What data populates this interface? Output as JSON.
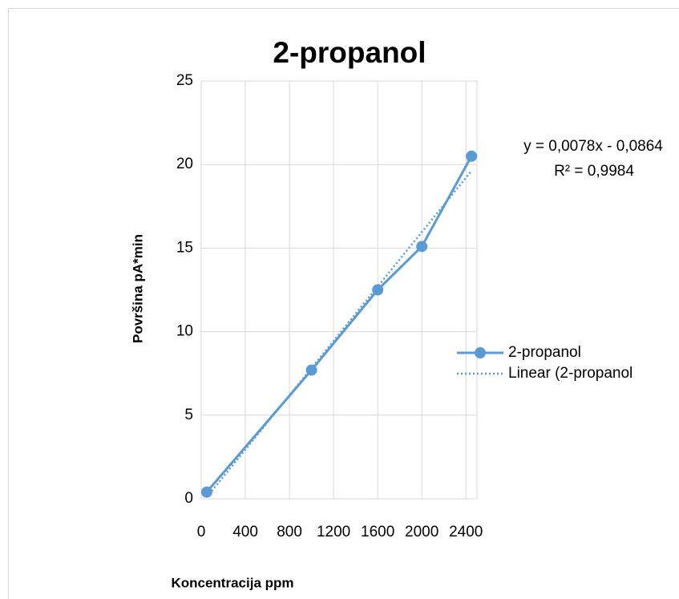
{
  "chart_data": {
    "type": "line",
    "title": "2-propanol",
    "x_label": "Koncentracija ppm",
    "y_label": "Površina pA*min",
    "x": [
      50,
      1000,
      1600,
      2000,
      2450
    ],
    "series": [
      {
        "name": "2-propanol",
        "color": "#5b9bd5",
        "values": [
          0.4,
          7.7,
          12.5,
          15.1,
          20.5
        ]
      }
    ],
    "trendline": {
      "name": "Linear (2-propanol",
      "equation": "y = 0,0078x - 0,0864",
      "r2": "R² = 0,9984"
    },
    "xlim": [
      0,
      2500
    ],
    "xticks": [
      0,
      400,
      800,
      1200,
      1600,
      2000,
      2400
    ],
    "ylim": [
      0,
      25
    ],
    "yticks": [
      0,
      5,
      10,
      15,
      20,
      25
    ],
    "grid": true
  }
}
